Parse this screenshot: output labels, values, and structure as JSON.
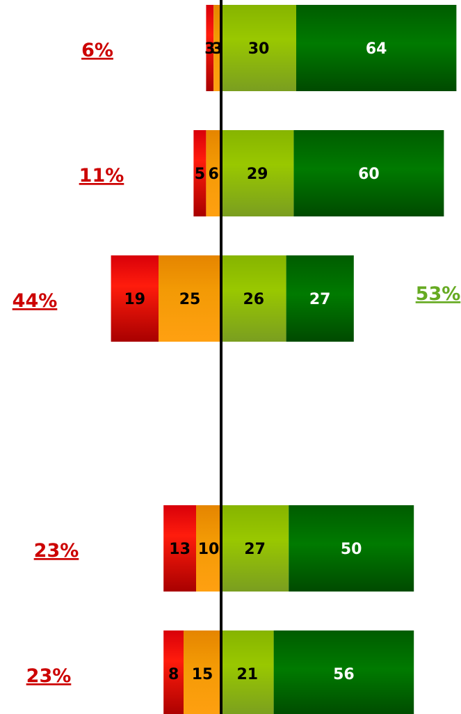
{
  "chart_data": {
    "type": "bar",
    "orientation": "horizontal",
    "stacking": "diverging",
    "title": "",
    "xlabel": "",
    "ylabel": "",
    "legend": "none",
    "grid": false,
    "colors": {
      "strong_negative": "#d40000",
      "negative": "#f29100",
      "positive": "#8fbf00",
      "strong_positive": "#007000",
      "baseline": "#000000",
      "negative_total_text": "#cc0000",
      "positive_total_text": "#66aa22"
    },
    "rows": [
      {
        "values": [
          3,
          3,
          30,
          64
        ],
        "labels": [
          "3",
          "3",
          "30",
          "64"
        ],
        "negative_total": "6%",
        "positive_total": ""
      },
      {
        "values": [
          5,
          6,
          29,
          60
        ],
        "labels": [
          "5",
          "6",
          "29",
          "60"
        ],
        "negative_total": "11%",
        "positive_total": ""
      },
      {
        "values": [
          19,
          25,
          26,
          27
        ],
        "labels": [
          "19",
          "25",
          "26",
          "27"
        ],
        "negative_total": "44%",
        "positive_total": "53%"
      },
      {
        "values": [
          13,
          10,
          27,
          50
        ],
        "labels": [
          "13",
          "10",
          "27",
          "50"
        ],
        "negative_total": "23%",
        "positive_total": ""
      },
      {
        "values": [
          8,
          15,
          21,
          56
        ],
        "labels": [
          "8",
          "15",
          "21",
          "56"
        ],
        "negative_total": "23%",
        "positive_total": ""
      }
    ]
  }
}
